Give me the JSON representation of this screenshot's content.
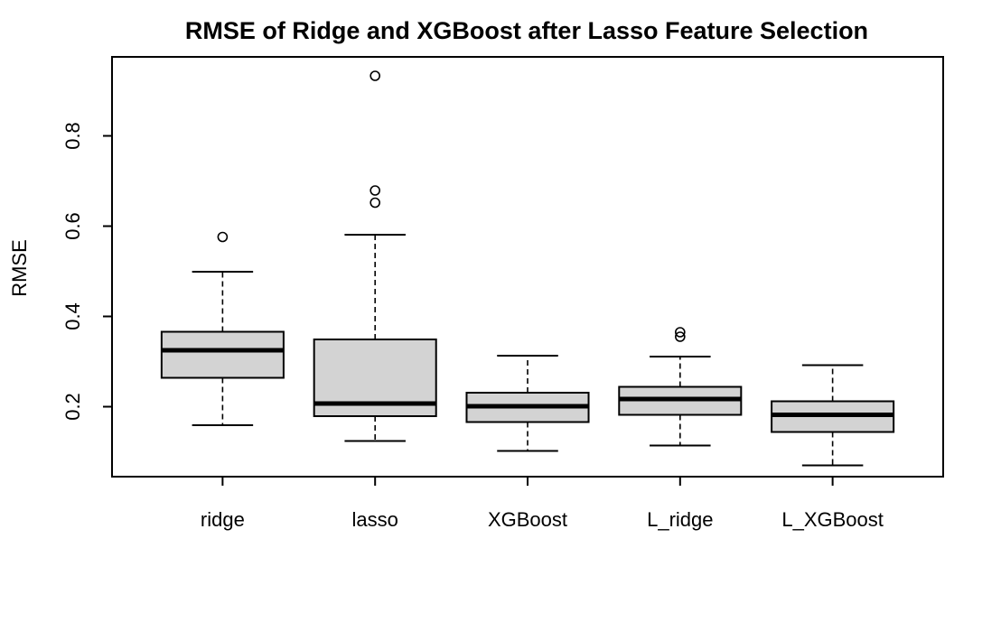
{
  "chart_data": {
    "type": "box",
    "title": "RMSE of Ridge and XGBoost after Lasso Feature Selection",
    "xlabel": "",
    "ylabel": "RMSE",
    "ylim": [
      0.045,
      0.975
    ],
    "yticks": [
      "0.2",
      "0.4",
      "0.6",
      "0.8"
    ],
    "ytick_values": [
      0.2,
      0.4,
      0.6,
      0.8
    ],
    "categories": [
      "ridge",
      "lasso",
      "XGBoost",
      "L_ridge",
      "L_XGBoost"
    ],
    "boxes": [
      {
        "category": "ridge",
        "whisker_low": 0.159,
        "q1": 0.264,
        "median": 0.325,
        "q3": 0.366,
        "whisker_high": 0.499,
        "outliers": [
          0.576
        ]
      },
      {
        "category": "lasso",
        "whisker_low": 0.124,
        "q1": 0.179,
        "median": 0.207,
        "q3": 0.349,
        "whisker_high": 0.581,
        "outliers": [
          0.652,
          0.679,
          0.933
        ]
      },
      {
        "category": "XGBoost",
        "whisker_low": 0.102,
        "q1": 0.166,
        "median": 0.201,
        "q3": 0.231,
        "whisker_high": 0.313,
        "outliers": []
      },
      {
        "category": "L_ridge",
        "whisker_low": 0.114,
        "q1": 0.182,
        "median": 0.217,
        "q3": 0.244,
        "whisker_high": 0.311,
        "outliers": [
          0.355,
          0.365
        ]
      },
      {
        "category": "L_XGBoost",
        "whisker_low": 0.07,
        "q1": 0.144,
        "median": 0.182,
        "q3": 0.212,
        "whisker_high": 0.292,
        "outliers": []
      }
    ],
    "colors": {
      "box_fill": "#d3d3d3",
      "stroke": "#000000",
      "background": "#ffffff"
    },
    "grid": false,
    "legend": "none"
  }
}
